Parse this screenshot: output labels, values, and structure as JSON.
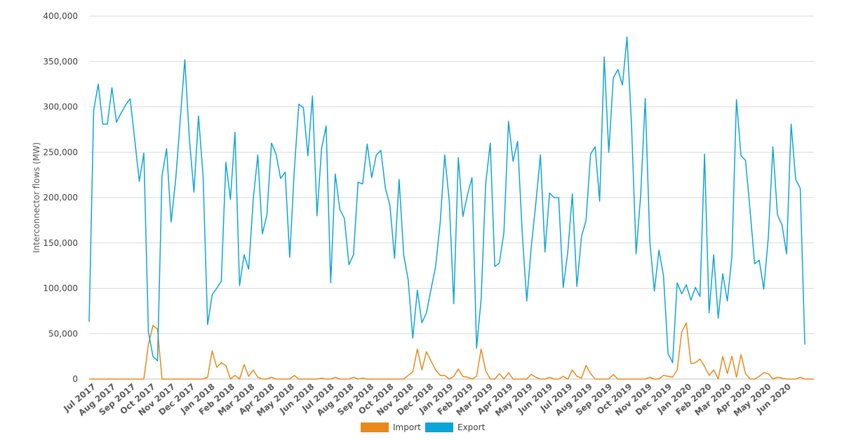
{
  "chart_data": {
    "type": "line",
    "ylabel": "Interconnector flows (MW)",
    "ylim": [
      0,
      400000
    ],
    "yticks": [
      0,
      50000,
      100000,
      150000,
      200000,
      250000,
      300000,
      350000,
      400000
    ],
    "ytick_labels": [
      "0",
      "50,000",
      "100,000",
      "150,000",
      "200,000",
      "250,000",
      "300,000",
      "350,000",
      "400,000"
    ],
    "x_period": "weekly",
    "month_labels": [
      "Jul 2017",
      "Aug 2017",
      "Sep 2017",
      "Oct 2017",
      "Nov 2017",
      "Dec 2017",
      "Jan 2018",
      "Feb 2018",
      "Mar 2018",
      "Apr 2018",
      "May 2018",
      "Jun 2018",
      "Jul 2018",
      "Aug 2018",
      "Sep 2018",
      "Oct 2018",
      "Nov 2018",
      "Dec 2018",
      "Jan 2019",
      "Feb 2019",
      "Mar 2019",
      "Apr 2019",
      "May 2019",
      "Jun 2019",
      "Jul 2019",
      "Aug 2019",
      "Sep 2019",
      "Oct 2019",
      "Nov 2019",
      "Dec 2019",
      "Jan 2020",
      "Feb 2020",
      "Mar 2020",
      "Apr 2020",
      "May 2020",
      "Jun 2020"
    ],
    "legend_position": "bottom",
    "grid": true,
    "series": [
      {
        "name": "Import",
        "color": "#e8891a",
        "values": [
          0,
          0,
          0,
          0,
          0,
          0,
          0,
          0,
          0,
          0,
          0,
          0,
          0,
          38000,
          59000,
          55000,
          0,
          0,
          0,
          0,
          0,
          0,
          0,
          0,
          0,
          0,
          2000,
          31000,
          13000,
          18000,
          15000,
          0,
          4000,
          0,
          16000,
          3000,
          10000,
          2000,
          0,
          0,
          2000,
          0,
          0,
          0,
          0,
          4000,
          0,
          0,
          0,
          0,
          0,
          1000,
          0,
          0,
          2000,
          0,
          0,
          0,
          2000,
          0,
          1000,
          0,
          0,
          0,
          0,
          0,
          0,
          0,
          0,
          0,
          4000,
          8000,
          33000,
          10000,
          30000,
          20000,
          10000,
          4000,
          4000,
          0,
          3000,
          11000,
          3000,
          2000,
          0,
          3000,
          33000,
          9000,
          0,
          0,
          6000,
          0,
          7000,
          0,
          0,
          0,
          0,
          5000,
          2000,
          0,
          0,
          2000,
          0,
          0,
          3000,
          0,
          10000,
          3000,
          1000,
          15000,
          6000,
          0,
          0,
          0,
          0,
          5000,
          0,
          0,
          0,
          0,
          0,
          0,
          0,
          2000,
          0,
          0,
          4000,
          3000,
          2000,
          10000,
          52000,
          62000,
          17000,
          18000,
          22000,
          14000,
          4000,
          10000,
          0,
          25000,
          6000,
          25000,
          2000,
          27000,
          6000,
          0,
          0,
          3000,
          7000,
          6000,
          0,
          2000,
          1000,
          0,
          0,
          0,
          2000,
          0,
          0,
          0
        ]
      },
      {
        "name": "Export",
        "color": "#0ca5d9",
        "values": [
          63000,
          296000,
          325000,
          281000,
          281000,
          321000,
          283000,
          293000,
          302000,
          309000,
          264000,
          218000,
          249000,
          52000,
          25000,
          20000,
          224000,
          254000,
          173000,
          220000,
          286000,
          352000,
          265000,
          206000,
          290000,
          224000,
          60000,
          93000,
          100000,
          108000,
          239000,
          198000,
          272000,
          103000,
          137000,
          121000,
          198000,
          247000,
          160000,
          181000,
          260000,
          248000,
          221000,
          228000,
          134000,
          230000,
          303000,
          299000,
          246000,
          312000,
          180000,
          254000,
          279000,
          106000,
          226000,
          187000,
          177000,
          126000,
          137000,
          217000,
          215000,
          259000,
          222000,
          247000,
          252000,
          210000,
          191000,
          133000,
          220000,
          137000,
          109000,
          45000,
          98000,
          62000,
          73000,
          99000,
          124000,
          172000,
          247000,
          196000,
          83000,
          244000,
          179000,
          203000,
          222000,
          34000,
          88000,
          215000,
          260000,
          124000,
          128000,
          162000,
          284000,
          240000,
          262000,
          162000,
          86000,
          146000,
          194000,
          247000,
          140000,
          205000,
          200000,
          200000,
          101000,
          140000,
          204000,
          102000,
          157000,
          175000,
          248000,
          256000,
          196000,
          355000,
          250000,
          332000,
          341000,
          324000,
          377000,
          279000,
          138000,
          203000,
          309000,
          152000,
          97000,
          142000,
          114000,
          28000,
          18000,
          106000,
          94000,
          104000,
          87000,
          101000,
          91000,
          248000,
          73000,
          137000,
          67000,
          116000,
          86000,
          135000,
          308000,
          246000,
          241000,
          186000,
          127000,
          131000,
          99000,
          156000,
          256000,
          181000,
          170000,
          138000,
          281000,
          220000,
          210000,
          38000
        ]
      }
    ]
  },
  "legend": {
    "import_label": "Import",
    "export_label": "Export"
  }
}
